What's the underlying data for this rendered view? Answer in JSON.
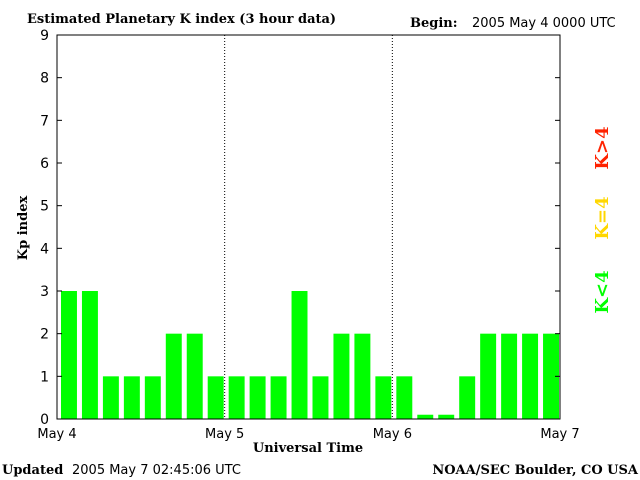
{
  "header": {
    "title": "Estimated Planetary K index (3 hour data)",
    "begin_label": "Begin:",
    "begin_value": "2005 May 4 0000 UTC"
  },
  "footer": {
    "updated_label": "Updated",
    "updated_value": "2005 May  7 02:45:06 UTC",
    "source": "NOAA/SEC Boulder, CO USA"
  },
  "legend": {
    "high": "K>4",
    "equal": "K=4",
    "low": "K<4"
  },
  "colors": {
    "low": "#00ff00",
    "equal": "#ffd700",
    "high": "#ff2200",
    "axis": "#000000"
  },
  "chart_data": {
    "type": "bar",
    "title": "Estimated Planetary K index (3 hour data)",
    "xlabel": "Universal Time",
    "ylabel": "Kp index",
    "ylim": [
      0,
      9
    ],
    "yticks": [
      "0",
      "1",
      "2",
      "3",
      "4",
      "5",
      "6",
      "7",
      "8",
      "9"
    ],
    "xticks": [
      "May 4",
      "May 5",
      "May 6",
      "May 7"
    ],
    "interval_hours": 3,
    "grid": "dotted vertical lines at day boundaries",
    "values": [
      3,
      3,
      1,
      1,
      1,
      2,
      2,
      1,
      1,
      1,
      1,
      3,
      1,
      2,
      2,
      1,
      1,
      0.1,
      0.1,
      1,
      2,
      2,
      2,
      2
    ]
  }
}
